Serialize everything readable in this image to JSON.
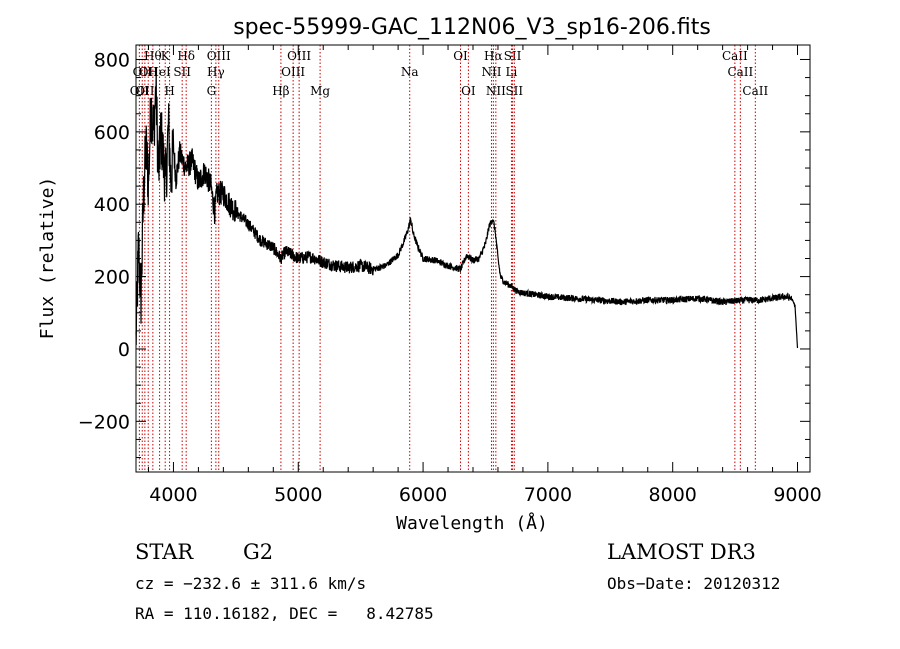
{
  "chart_data": {
    "type": "line",
    "title": "spec-55999-GAC_112N06_V3_sp16-206.fits",
    "xlabel": "Wavelength (Å)",
    "ylabel": "Flux (relative)",
    "xlim": [
      3700,
      9100
    ],
    "ylim": [
      -340,
      840
    ],
    "xticks": [
      4000,
      5000,
      6000,
      7000,
      8000,
      9000
    ],
    "yticks": [
      -200,
      0,
      200,
      400,
      600,
      800
    ],
    "line_color": "#000000",
    "marker_color": "#cc0000",
    "series": [
      {
        "name": "flux",
        "x": [
          3700,
          3720,
          3740,
          3760,
          3780,
          3800,
          3820,
          3840,
          3860,
          3880,
          3900,
          3920,
          3940,
          3960,
          3980,
          4000,
          4020,
          4050,
          4100,
          4150,
          4200,
          4250,
          4300,
          4330,
          4350,
          4400,
          4450,
          4500,
          4600,
          4700,
          4800,
          4860,
          4900,
          5000,
          5100,
          5200,
          5300,
          5400,
          5500,
          5600,
          5700,
          5800,
          5850,
          5880,
          5900,
          5920,
          5950,
          6000,
          6100,
          6200,
          6300,
          6350,
          6400,
          6450,
          6500,
          6530,
          6560,
          6580,
          6600,
          6620,
          6650,
          6700,
          6750,
          6800,
          6900,
          7000,
          7200,
          7400,
          7600,
          7800,
          8000,
          8200,
          8400,
          8600,
          8700,
          8800,
          8900,
          8950,
          8980,
          9000
        ],
        "y": [
          20,
          280,
          140,
          420,
          560,
          460,
          680,
          600,
          720,
          480,
          600,
          520,
          460,
          620,
          460,
          560,
          470,
          540,
          500,
          520,
          460,
          490,
          450,
          380,
          430,
          430,
          400,
          380,
          345,
          300,
          280,
          250,
          270,
          250,
          255,
          240,
          230,
          225,
          230,
          220,
          230,
          260,
          300,
          330,
          360,
          320,
          290,
          250,
          245,
          230,
          220,
          260,
          245,
          250,
          290,
          340,
          360,
          320,
          250,
          200,
          185,
          175,
          160,
          155,
          150,
          145,
          140,
          135,
          130,
          135,
          135,
          140,
          130,
          135,
          135,
          140,
          145,
          140,
          120,
          0
        ]
      }
    ],
    "lines": {
      "left": [
        {
          "wl": 3727,
          "label": "OII"
        },
        {
          "wl": 3750,
          "label": "OII"
        },
        {
          "wl": 3771,
          "label": "OII"
        },
        {
          "wl": 3798,
          "label": "OII"
        },
        {
          "wl": 3835,
          "label": "Hθ"
        },
        {
          "wl": 3889,
          "label": "HeI"
        },
        {
          "wl": 3934,
          "label": "K"
        },
        {
          "wl": 3969,
          "label": "H"
        },
        {
          "wl": 4070,
          "label": "SII"
        },
        {
          "wl": 4102,
          "label": "Hδ"
        },
        {
          "wl": 4304,
          "label": "G"
        },
        {
          "wl": 4340,
          "label": "Hγ"
        },
        {
          "wl": 4363,
          "label": "OIII"
        }
      ],
      "mid": [
        {
          "wl": 4861,
          "label": "Hβ"
        },
        {
          "wl": 4959,
          "label": "OIII"
        },
        {
          "wl": 5007,
          "label": "OIII"
        },
        {
          "wl": 5175,
          "label": "Mg"
        },
        {
          "wl": 5893,
          "label": "Na"
        },
        {
          "wl": 6300,
          "label": "OI"
        },
        {
          "wl": 6363,
          "label": "OI"
        }
      ],
      "right": [
        {
          "wl": 6548,
          "label": "NII"
        },
        {
          "wl": 6563,
          "label": "Hα"
        },
        {
          "wl": 6583,
          "label": "NII"
        },
        {
          "wl": 6708,
          "label": "Li"
        },
        {
          "wl": 6717,
          "label": "SII"
        },
        {
          "wl": 6731,
          "label": "SII"
        },
        {
          "wl": 8498,
          "label": "CaII"
        },
        {
          "wl": 8542,
          "label": "CaII"
        },
        {
          "wl": 8662,
          "label": "CaII"
        }
      ]
    }
  },
  "info": {
    "class": "STAR",
    "subclass": "G2",
    "survey": "LAMOST DR3",
    "cz": "cz = −232.6 ± 311.6 km/s",
    "obs_date": "Obs−Date: 20120312",
    "coords": "RA = 110.16182, DEC =   8.42785"
  }
}
